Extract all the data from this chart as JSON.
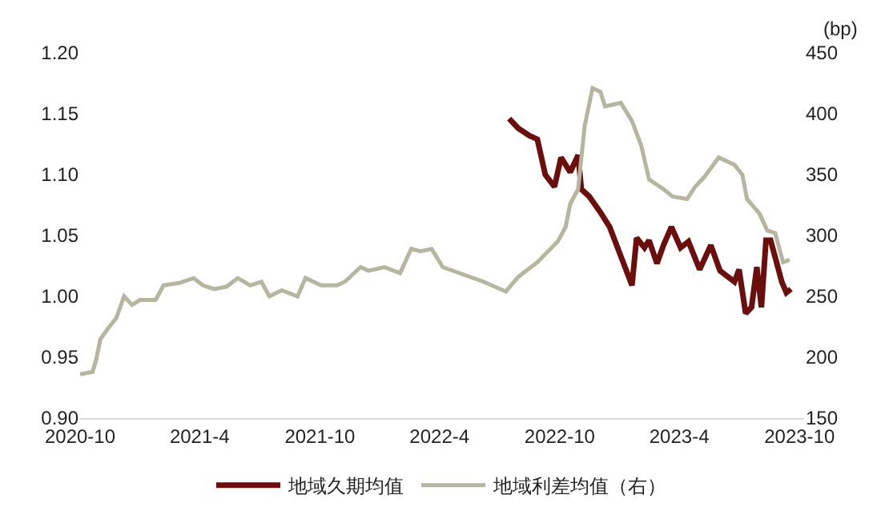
{
  "chart_data": {
    "type": "line",
    "y2label": "(bp)",
    "xlim": [
      "2020-10-01",
      "2023-10-08"
    ],
    "xticks": [
      {
        "value": "2020-10-01",
        "label": "2020-10"
      },
      {
        "value": "2021-04-01",
        "label": "2021-4"
      },
      {
        "value": "2021-10-01",
        "label": "2021-10"
      },
      {
        "value": "2022-04-01",
        "label": "2022-4"
      },
      {
        "value": "2022-10-01",
        "label": "2022-10"
      },
      {
        "value": "2023-04-01",
        "label": "2023-4"
      },
      {
        "value": "2023-10-01",
        "label": "2023-10"
      }
    ],
    "ylim": [
      0.9,
      1.2
    ],
    "yticks": [
      {
        "value": 0.9,
        "label": "0.90"
      },
      {
        "value": 0.95,
        "label": "0.95"
      },
      {
        "value": 1.0,
        "label": "1.00"
      },
      {
        "value": 1.05,
        "label": "1.05"
      },
      {
        "value": 1.1,
        "label": "1.10"
      },
      {
        "value": 1.15,
        "label": "1.15"
      },
      {
        "value": 1.2,
        "label": "1.20"
      }
    ],
    "y2lim": [
      150,
      450
    ],
    "y2ticks": [
      150,
      200,
      250,
      300,
      350,
      400,
      450
    ],
    "grid": false,
    "legend": "bottom",
    "line_style": "solid",
    "marker": "none",
    "series": [
      {
        "name": "地域久期均值",
        "color": "#6b0e0e",
        "x": [
          "2022-07-16",
          "2022-07-30",
          "2022-08-16",
          "2022-08-28",
          "2022-09-09",
          "2022-09-23",
          "2022-10-03",
          "2022-10-17",
          "2022-10-29",
          "2022-11-03",
          "2022-11-15",
          "2022-12-02",
          "2022-12-16",
          "2023-01-02",
          "2023-01-19",
          "2023-01-26",
          "2023-02-07",
          "2023-02-14",
          "2023-02-26",
          "2023-03-08",
          "2023-03-20",
          "2023-04-03",
          "2023-04-15",
          "2023-05-02",
          "2023-05-19",
          "2023-06-02",
          "2023-06-24",
          "2023-07-01",
          "2023-07-11",
          "2023-07-20",
          "2023-07-28",
          "2023-08-04",
          "2023-08-11",
          "2023-08-18",
          "2023-09-04",
          "2023-09-11",
          "2023-09-18"
        ],
        "values": [
          1.146,
          1.138,
          1.132,
          1.129,
          1.1,
          1.09,
          1.114,
          1.102,
          1.116,
          1.088,
          1.082,
          1.069,
          1.057,
          1.033,
          1.009,
          1.048,
          1.04,
          1.046,
          1.027,
          1.042,
          1.057,
          1.04,
          1.045,
          1.022,
          1.042,
          1.021,
          1.012,
          1.022,
          0.986,
          0.991,
          1.024,
          0.991,
          1.046,
          1.046,
          1.012,
          1.003,
          1.006
        ]
      },
      {
        "name": "地域利差均值（右）",
        "color": "#b5b5a0",
        "axis": "y2",
        "x": [
          "2020-10-01",
          "2020-10-20",
          "2020-10-25",
          "2020-11-01",
          "2020-11-13",
          "2020-11-25",
          "2020-12-07",
          "2020-12-19",
          "2020-12-31",
          "2021-01-24",
          "2021-02-05",
          "2021-03-01",
          "2021-03-23",
          "2021-04-06",
          "2021-04-23",
          "2021-05-12",
          "2021-05-29",
          "2021-06-17",
          "2021-07-04",
          "2021-07-16",
          "2021-08-04",
          "2021-08-28",
          "2021-09-09",
          "2021-10-03",
          "2021-10-27",
          "2021-11-08",
          "2021-12-02",
          "2021-12-14",
          "2022-01-07",
          "2022-01-31",
          "2022-02-17",
          "2022-03-03",
          "2022-03-20",
          "2022-04-06",
          "2022-06-07",
          "2022-07-11",
          "2022-07-30",
          "2022-08-28",
          "2022-09-28",
          "2022-10-10",
          "2022-10-17",
          "2022-10-29",
          "2022-11-08",
          "2022-11-20",
          "2022-12-02",
          "2022-12-09",
          "2023-01-02",
          "2023-01-19",
          "2023-02-02",
          "2023-02-14",
          "2023-03-08",
          "2023-03-22",
          "2023-04-13",
          "2023-04-25",
          "2023-05-09",
          "2023-05-31",
          "2023-06-24",
          "2023-07-06",
          "2023-07-13",
          "2023-08-01",
          "2023-08-13",
          "2023-08-25",
          "2023-09-06",
          "2023-09-16"
        ],
        "values": [
          186,
          188,
          197,
          215,
          224,
          232,
          250,
          243,
          247,
          247,
          259,
          261,
          265,
          259,
          256,
          258,
          265,
          259,
          262,
          250,
          255,
          250,
          265,
          259,
          259,
          262,
          274,
          271,
          274,
          269,
          289,
          287,
          289,
          274,
          262,
          254,
          266,
          278,
          295,
          307,
          326,
          338,
          390,
          421,
          418,
          406,
          409,
          394,
          374,
          346,
          338,
          332,
          330,
          340,
          348,
          364,
          358,
          350,
          330,
          318,
          304,
          302,
          278,
          280
        ]
      }
    ]
  }
}
